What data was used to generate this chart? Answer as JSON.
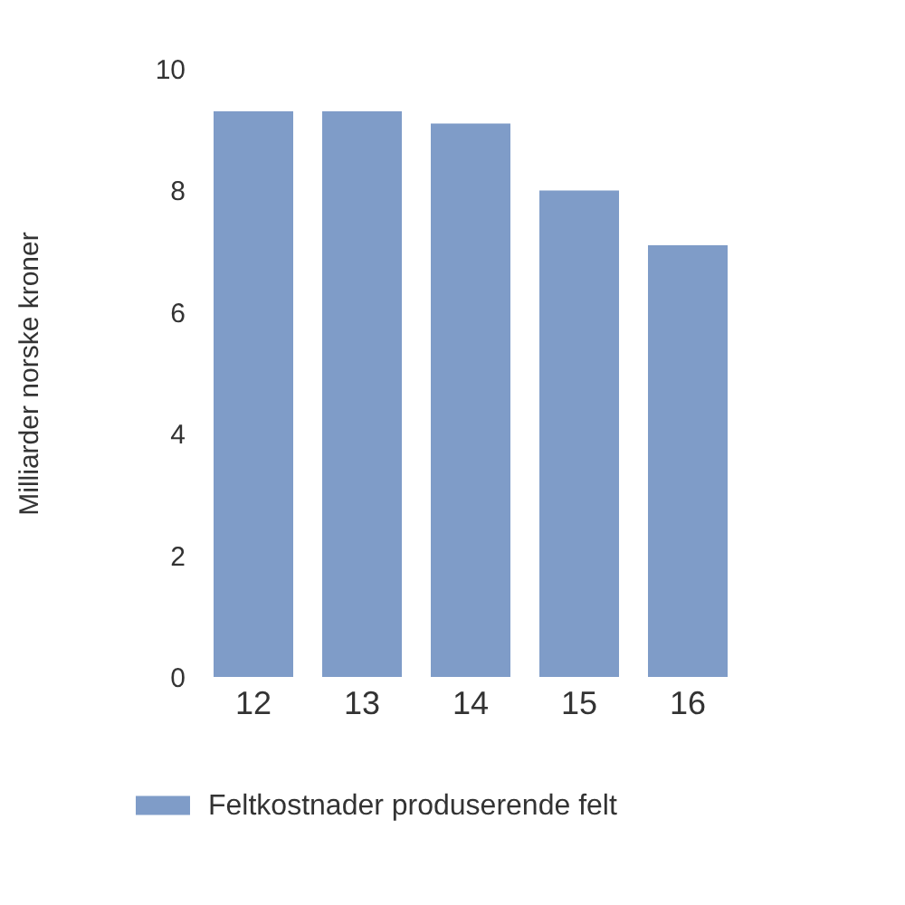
{
  "chart_data": {
    "type": "bar",
    "ylabel": "Milliarder norske kroner",
    "categories": [
      "12",
      "13",
      "14",
      "15",
      "16"
    ],
    "series": [
      {
        "name": "Feltkostnader produserende felt",
        "color": "#7f9cc8",
        "values": [
          9.3,
          9.3,
          9.1,
          8.0,
          7.1
        ]
      }
    ],
    "ylim": [
      0,
      10
    ],
    "yticks": [
      0,
      2,
      4,
      6,
      8,
      10
    ],
    "grid": false,
    "legend": "bottom"
  }
}
